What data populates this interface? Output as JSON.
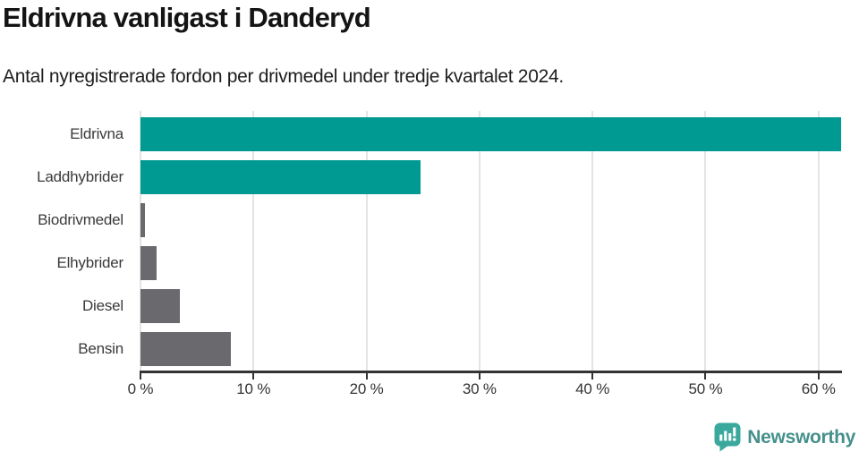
{
  "title": "Eldrivna vanligast i Danderyd",
  "subtitle": "Antal nyregistrerade fordon per drivmedel under tredje kvartalet 2024.",
  "chart_data": {
    "type": "bar",
    "orientation": "horizontal",
    "title": "Eldrivna vanligast i Danderyd",
    "subtitle": "Antal nyregistrerade fordon per drivmedel under tredje kvartalet 2024.",
    "categories": [
      "Eldrivna",
      "Laddhybrider",
      "Biodrivmedel",
      "Elhybrider",
      "Diesel",
      "Bensin"
    ],
    "values": [
      62,
      24.8,
      0.4,
      1.4,
      3.5,
      8
    ],
    "unit": "%",
    "xlim": [
      0,
      62
    ],
    "x_ticks": [
      0,
      10,
      20,
      30,
      40,
      50,
      60
    ],
    "x_tick_labels": [
      "0 %",
      "10 %",
      "20 %",
      "30 %",
      "40 %",
      "50 %",
      "60 %"
    ],
    "bar_colors": [
      "#009a92",
      "#009a92",
      "#6a6a6e",
      "#6a6a6e",
      "#6a6a6e",
      "#6a6a6e"
    ],
    "highlight_color": "#009a92",
    "default_color": "#6a6a6e",
    "grid": true,
    "gridline_color": "#e4e4e4",
    "axis_color": "#333333",
    "legend": "none"
  },
  "footer": {
    "brand": "Newsworthy",
    "brand_color": "#45908c",
    "icon": "newsworthy-speech-bubble-bar-chart-icon",
    "icon_color": "#3ba89e"
  }
}
